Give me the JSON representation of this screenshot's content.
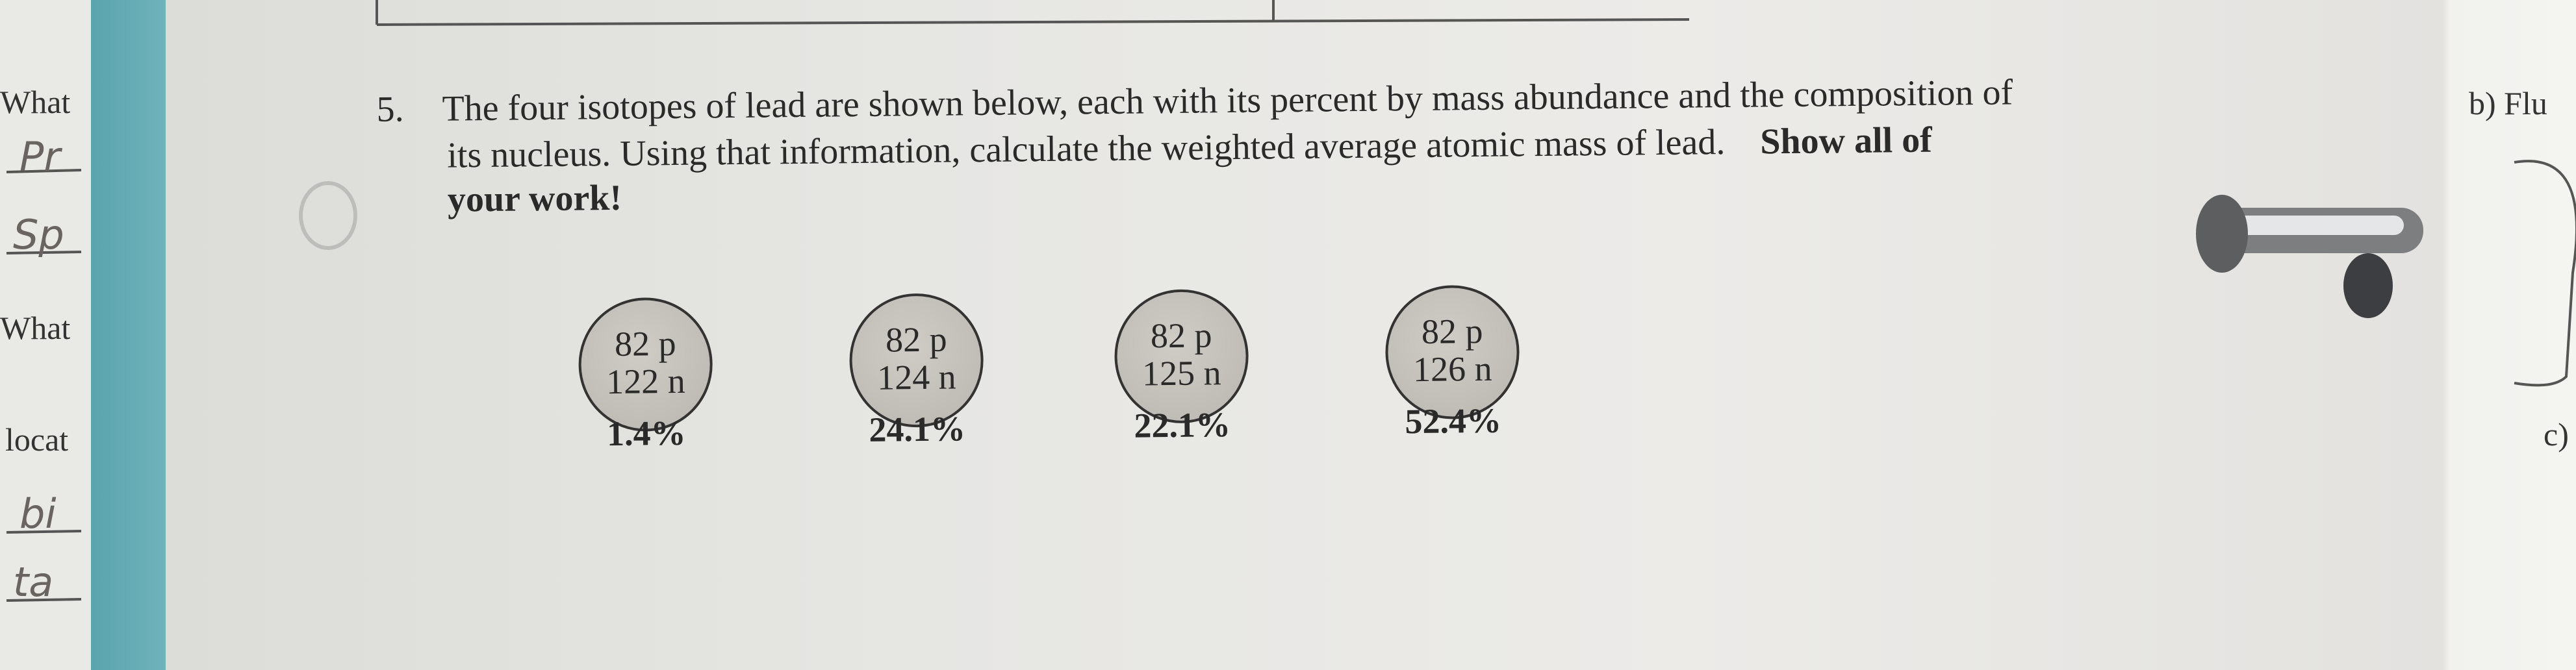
{
  "question": {
    "number": "5.",
    "lines": [
      "The four isotopes of lead are shown below, each with its percent by mass abundance and the composition of",
      "its nucleus.  Using that information, calculate the weighted average atomic mass of lead."
    ],
    "emphasis": [
      "Show all of",
      "your work!"
    ]
  },
  "isotopes": [
    {
      "protons": "82 p",
      "neutrons": "122 n",
      "abundance": "1.4%"
    },
    {
      "protons": "82 p",
      "neutrons": "124 n",
      "abundance": "24.1%"
    },
    {
      "protons": "82 p",
      "neutrons": "125 n",
      "abundance": "22.1%"
    },
    {
      "protons": "82 p",
      "neutrons": "126 n",
      "abundance": "52.4%"
    }
  ],
  "margin_left": [
    "What",
    "What",
    "locat"
  ],
  "handwriting": [
    "Pr",
    "Sp",
    "bi",
    "ta"
  ],
  "margin_right": [
    "b) Flu",
    "c)"
  ]
}
